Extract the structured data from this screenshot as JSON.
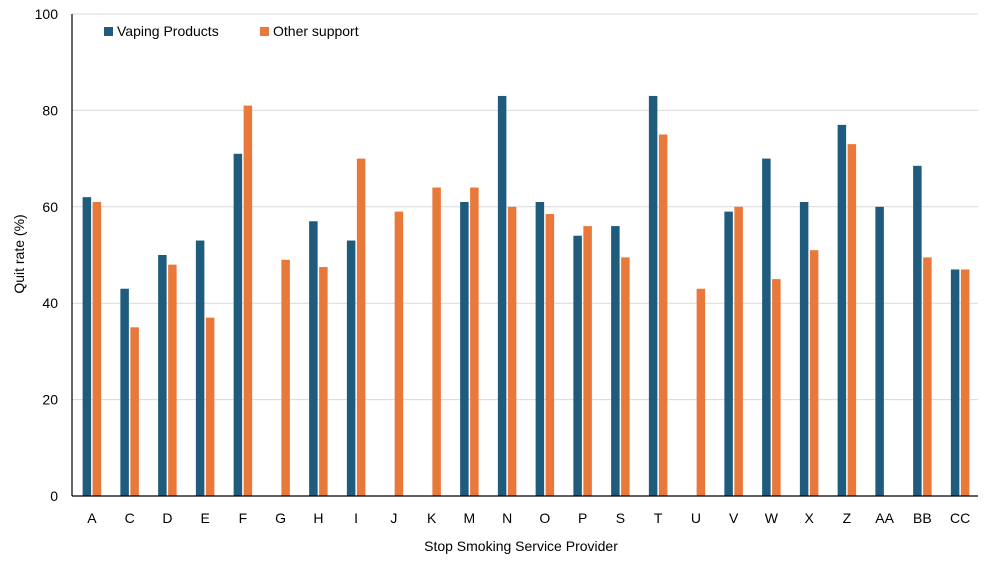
{
  "chart_data": {
    "type": "bar",
    "xlabel": "Stop Smoking Service Provider",
    "ylabel": "Quit rate (%)",
    "ylim": [
      0,
      100
    ],
    "yticks": [
      0,
      20,
      40,
      60,
      80,
      100
    ],
    "grid": true,
    "legend_position": "top-left",
    "categories": [
      "A",
      "C",
      "D",
      "E",
      "F",
      "G",
      "H",
      "I",
      "J",
      "K",
      "M",
      "N",
      "O",
      "P",
      "S",
      "T",
      "U",
      "V",
      "W",
      "X",
      "Z",
      "AA",
      "BB",
      "CC"
    ],
    "series": [
      {
        "name": "Vaping Products",
        "color": "#1f5b7d",
        "values": [
          62,
          43,
          50,
          53,
          71,
          null,
          57,
          53,
          null,
          null,
          61,
          83,
          61,
          54,
          56,
          83,
          null,
          59,
          70,
          61,
          77,
          60,
          68.5,
          47
        ]
      },
      {
        "name": "Other support",
        "color": "#e8793a",
        "values": [
          61,
          35,
          48,
          37,
          81,
          49,
          47.5,
          70,
          59,
          64,
          64,
          60,
          58.5,
          56,
          49.5,
          75,
          43,
          60,
          45,
          51,
          73,
          null,
          49.5,
          47
        ]
      }
    ]
  }
}
